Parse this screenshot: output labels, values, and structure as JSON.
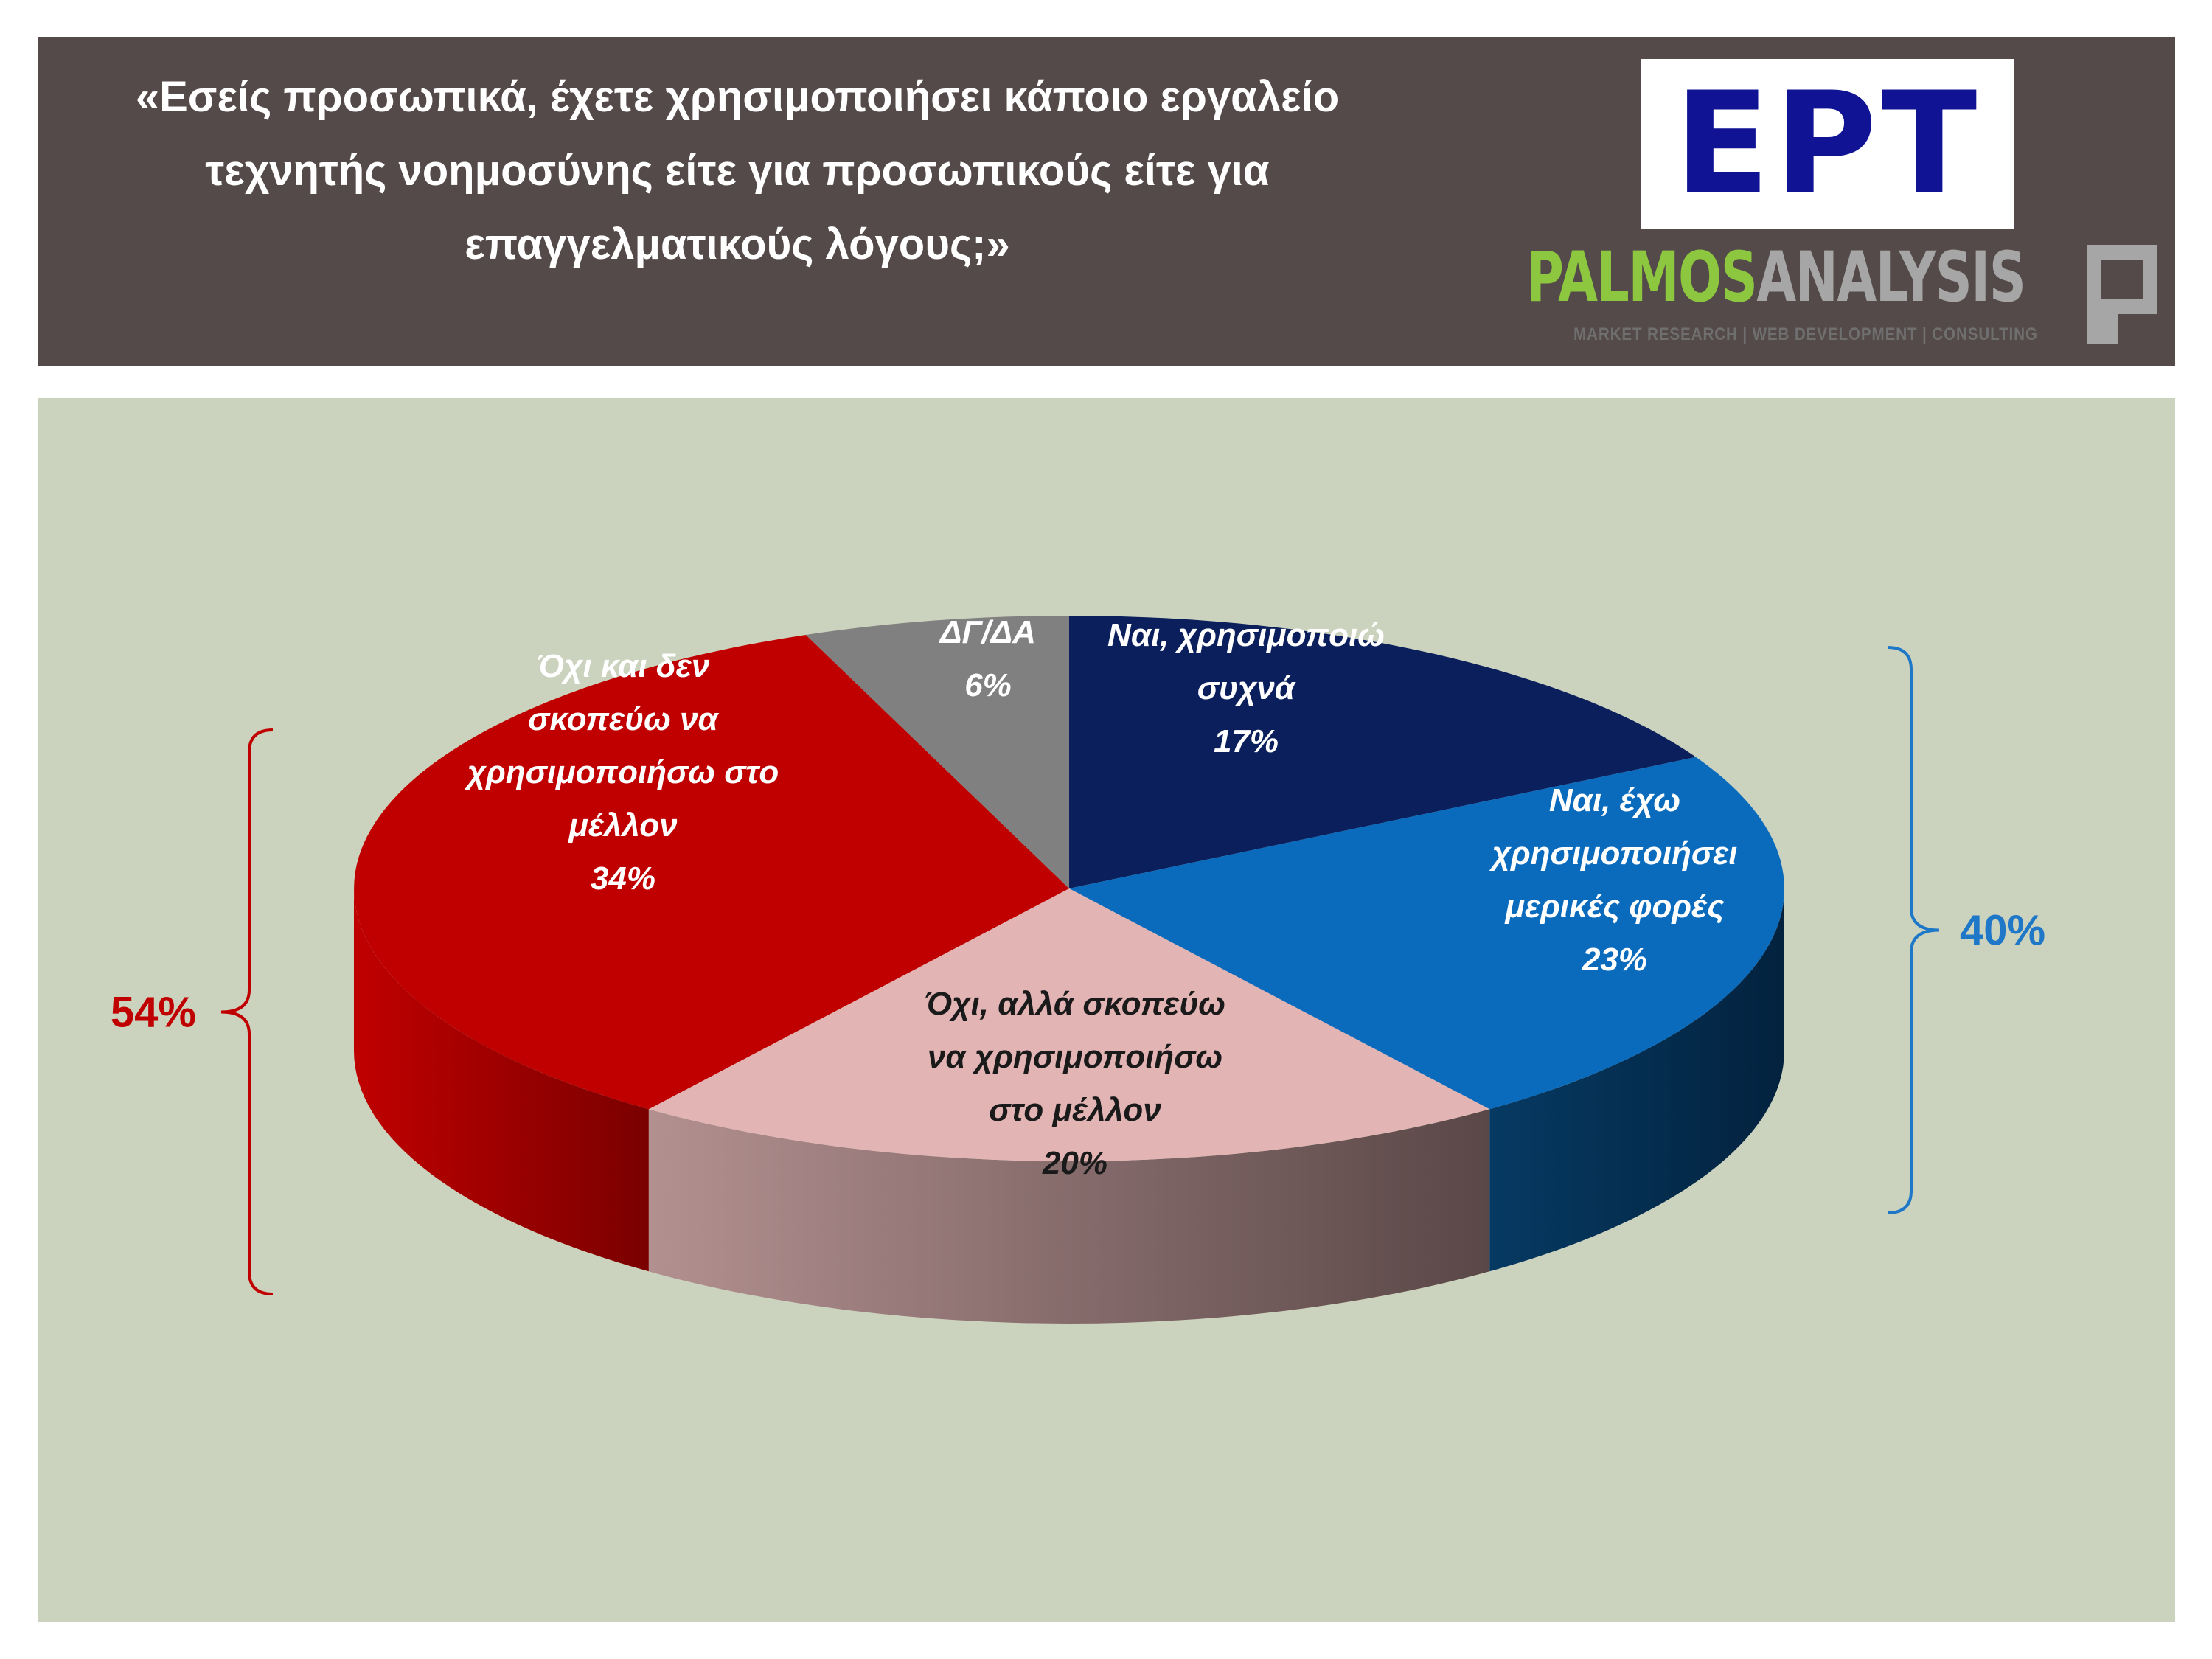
{
  "header": {
    "title_lines": [
      "«Εσείς προσωπικά, έχετε χρησιμοποιήσει κάποιο εργαλείο",
      "τεχνητής νοημοσύνης είτε για προσωπικούς είτε για",
      "επαγγελματικούς λόγους;»"
    ],
    "logo_ert": "ΕΡΤ",
    "logo_palmos_word_1": "PALMOS",
    "logo_palmos_word_2": "ANALYSIS",
    "logo_palmos_tagline": "MARKET RESEARCH | WEB DEVELOPMENT | CONSULTING"
  },
  "colors": {
    "header_bg": "#544a49",
    "panel_bg": "#cbd2bd",
    "dark_navy": "#0b1f5c",
    "blue": "#0a6bbd",
    "pink": "#e2b4b4",
    "red": "#c00000",
    "gray": "#808080",
    "bracket_red": "#c00000",
    "bracket_blue": "#1f77c8"
  },
  "chart_data": {
    "type": "pie",
    "title": "«Εσείς προσωπικά, έχετε χρησιμοποιήσει κάποιο εργαλείο τεχνητής νοημοσύνης είτε για προσωπικούς είτε για επαγγελματικούς λόγους;»",
    "slices": [
      {
        "label_lines": [
          "Ναι, χρησιμοποιώ",
          "συχνά"
        ],
        "value": 17,
        "value_label": "17%",
        "color": "#0b1f5c"
      },
      {
        "label_lines": [
          "Ναι, έχω",
          "χρησιμοποιήσει",
          "μερικές φορές"
        ],
        "value": 23,
        "value_label": "23%",
        "color": "#0a6bbd"
      },
      {
        "label_lines": [
          "Όχι, αλλά σκοπεύω",
          "να χρησιμοποιήσω",
          "στο μέλλον"
        ],
        "value": 20,
        "value_label": "20%",
        "color": "#e2b4b4"
      },
      {
        "label_lines": [
          "Όχι και δεν",
          "σκοπεύω να",
          "χρησιμοποιήσω στο",
          "μέλλον"
        ],
        "value": 34,
        "value_label": "34%",
        "color": "#c00000"
      },
      {
        "label_lines": [
          "ΔΓ/ΔΑ"
        ],
        "value": 6,
        "value_label": "6%",
        "color": "#808080"
      }
    ],
    "groups": [
      {
        "label": "40%",
        "side": "right",
        "color": "#1f77c8"
      },
      {
        "label": "54%",
        "side": "left",
        "color": "#c00000"
      }
    ]
  }
}
